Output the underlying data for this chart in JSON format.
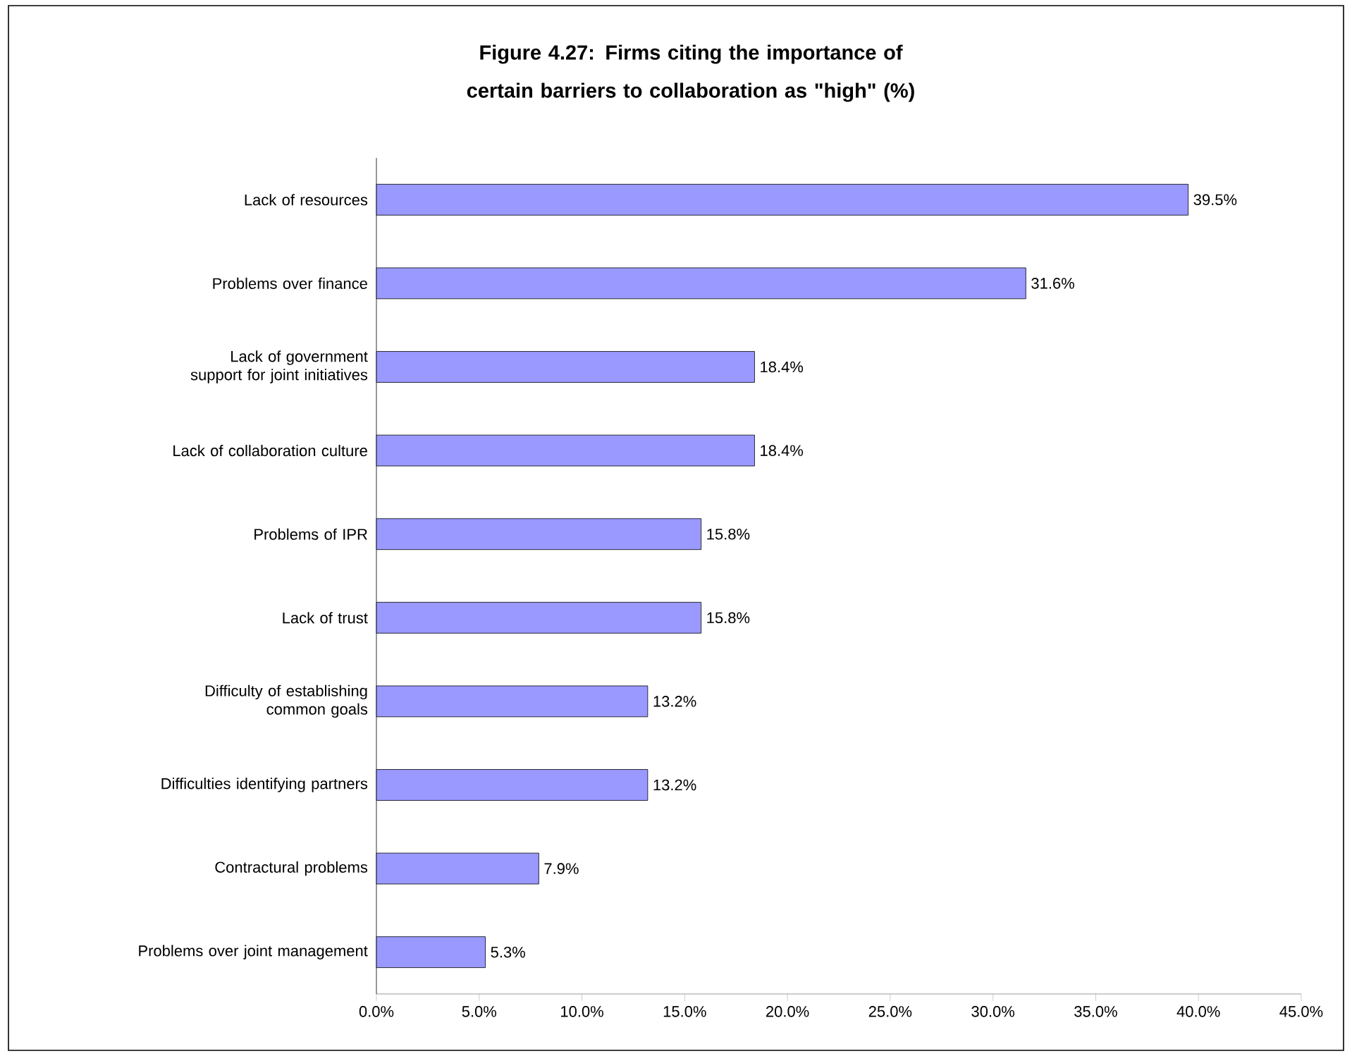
{
  "chart_data": {
    "type": "bar",
    "orientation": "horizontal",
    "title": "Figure 4.27: Firms citing the importance of certain barriers to collaboration as \"high\" (%)",
    "categories": [
      "Lack of resources",
      "Problems over finance",
      "Lack of government support for joint initiatives",
      "Lack of collaboration culture",
      "Problems of IPR",
      "Lack of trust",
      "Difficulty of establishing common goals",
      "Difficulties identifying partners",
      "Contractural problems",
      "Problems over joint management"
    ],
    "values": [
      39.5,
      31.6,
      18.4,
      18.4,
      15.8,
      15.8,
      13.2,
      13.2,
      7.9,
      5.3
    ],
    "value_labels": [
      "39.5%",
      "31.6%",
      "18.4%",
      "18.4%",
      "15.8%",
      "15.8%",
      "13.2%",
      "13.2%",
      "7.9%",
      "5.3%"
    ],
    "color": "#9999ff",
    "xlim": [
      0,
      45
    ],
    "xticks": [
      {
        "value": 0,
        "label": "0.0%"
      },
      {
        "value": 5,
        "label": "5.0%"
      },
      {
        "value": 10,
        "label": "10.0%"
      },
      {
        "value": 15,
        "label": "15.0%"
      },
      {
        "value": 20,
        "label": "20.0%"
      },
      {
        "value": 25,
        "label": "25.0%"
      },
      {
        "value": 30,
        "label": "30.0%"
      },
      {
        "value": 35,
        "label": "35.0%"
      },
      {
        "value": 40,
        "label": "40.0%"
      },
      {
        "value": 45,
        "label": "45.0%"
      }
    ],
    "grid": false
  }
}
